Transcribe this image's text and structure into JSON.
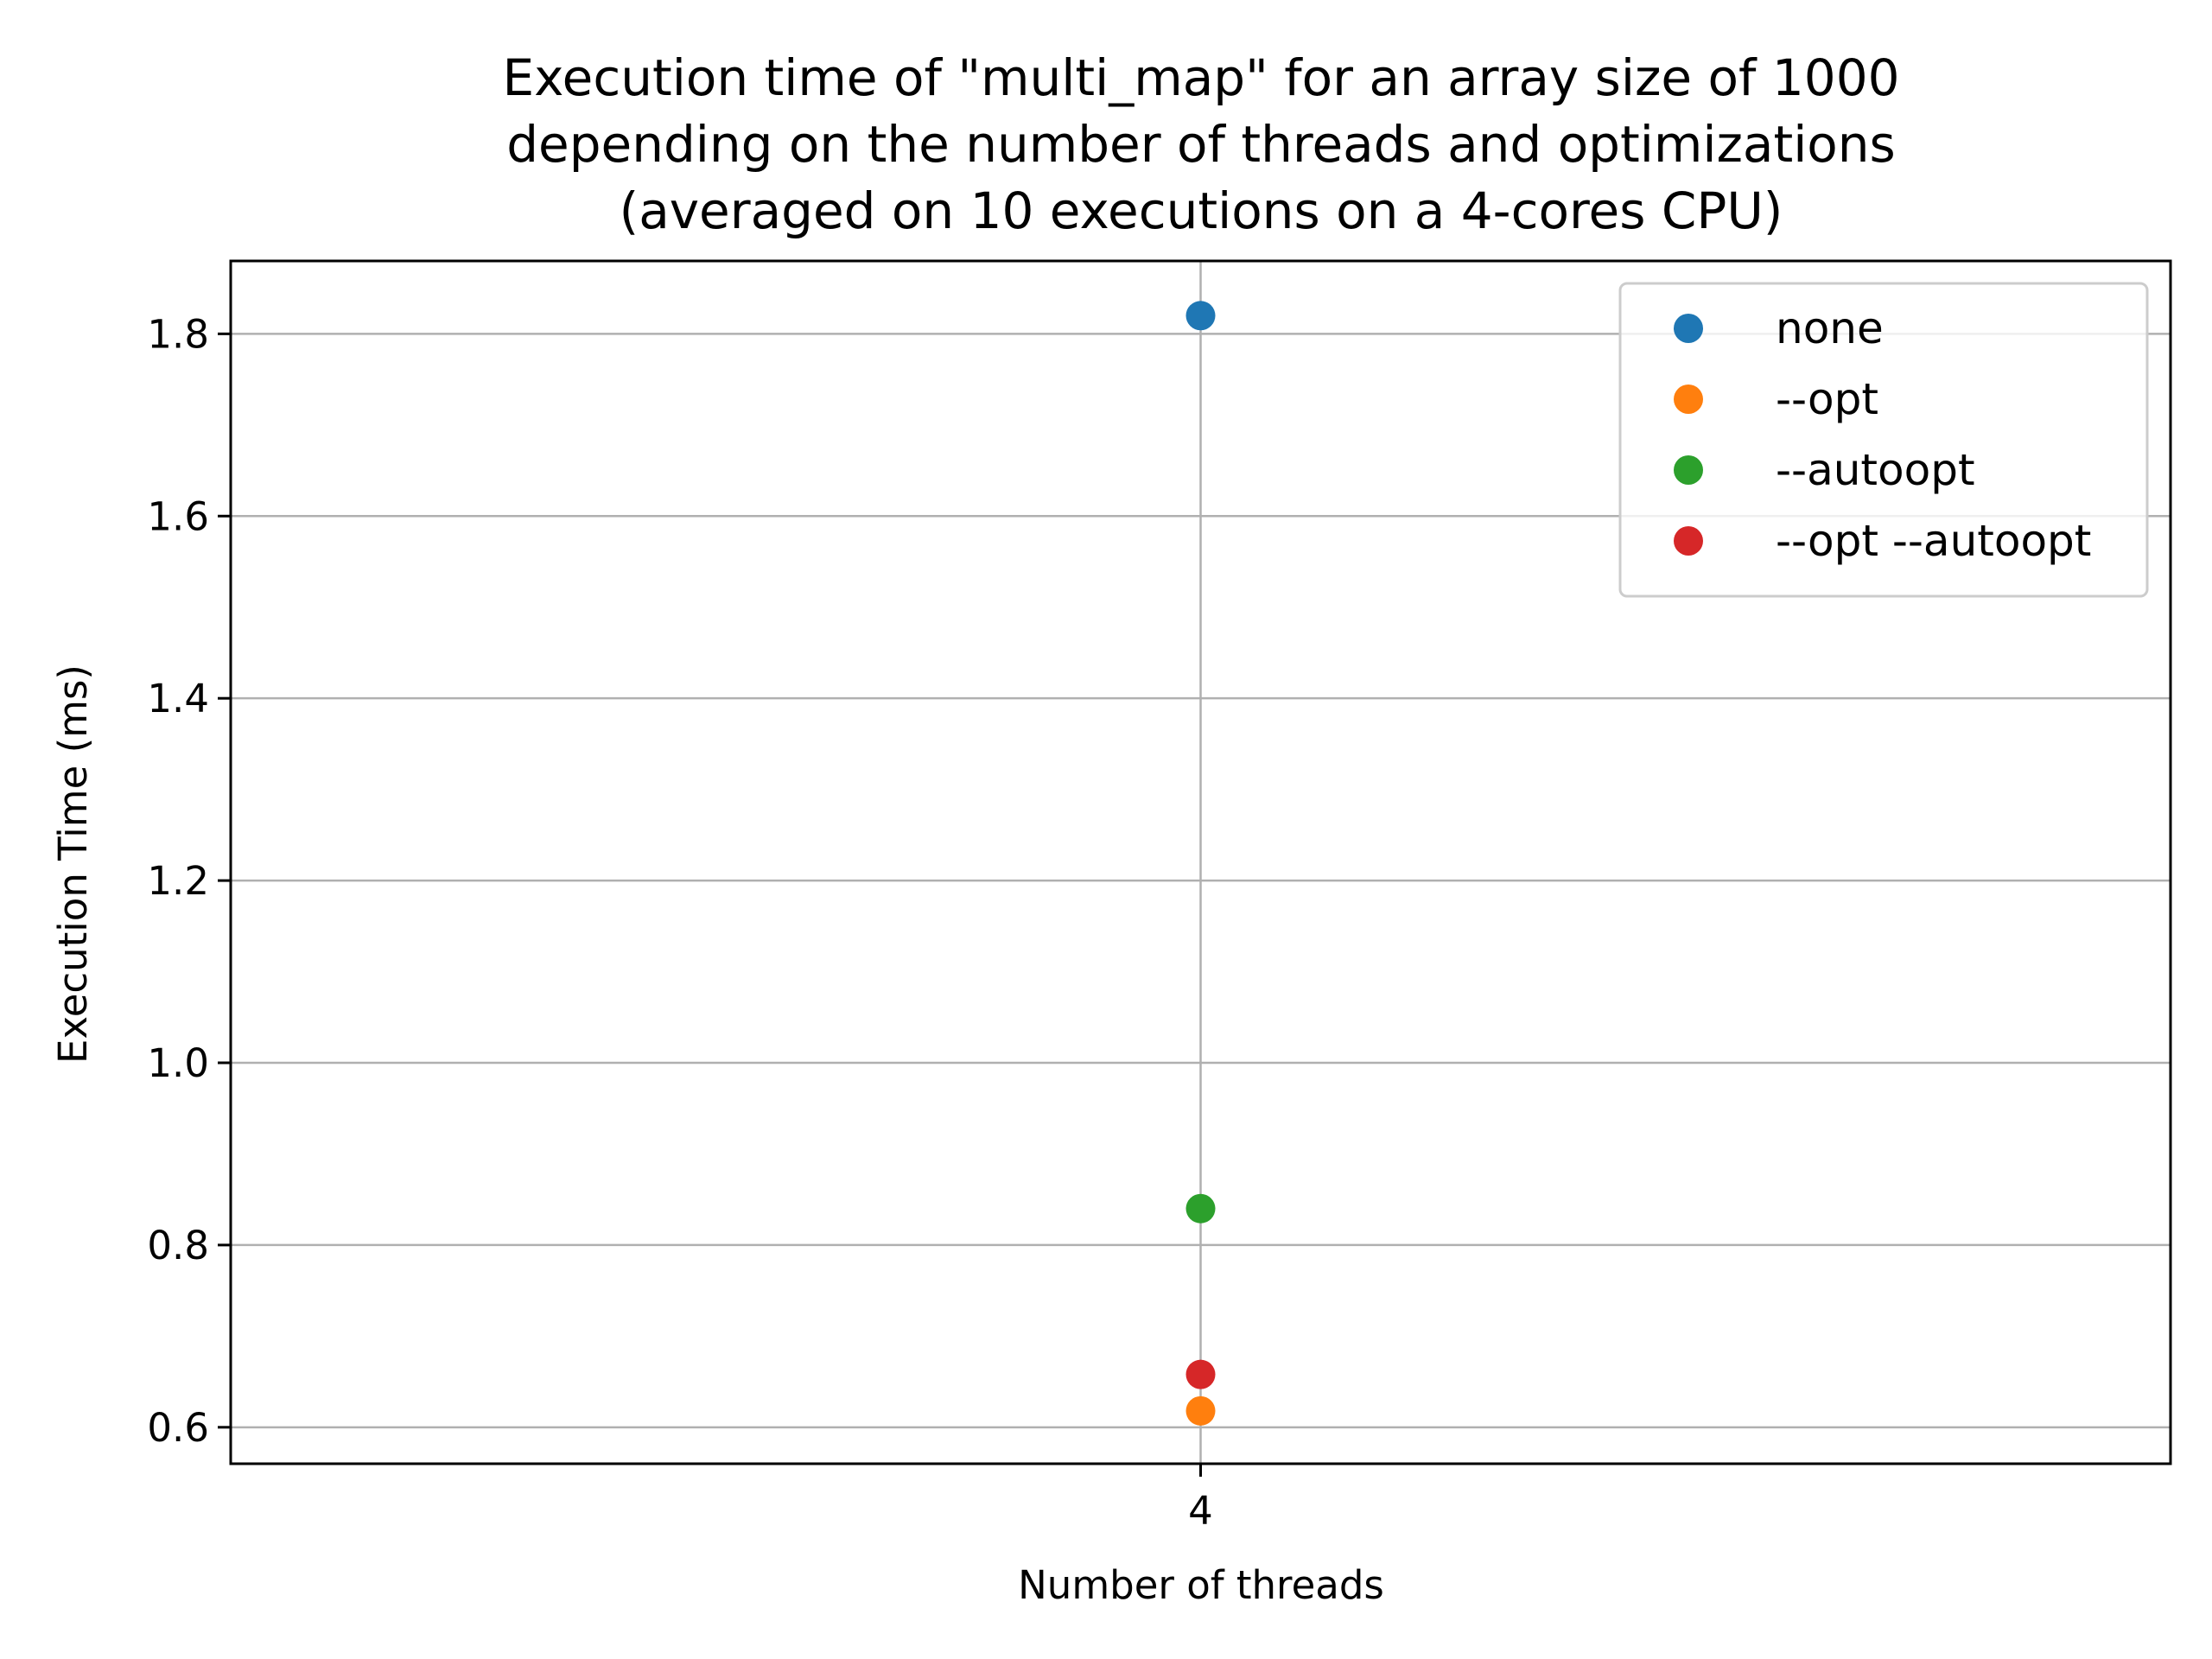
{
  "chart_data": {
    "type": "scatter",
    "title_lines": [
      "Execution time of \"multi_map\" for an array size of 1000",
      "depending on the number of threads and optimizations",
      "(averaged on 10 executions on a 4-cores CPU)"
    ],
    "xlabel": "Number of threads",
    "ylabel": "Execution Time (ms)",
    "x_categories": [
      "4"
    ],
    "ylim": [
      0.56,
      1.88
    ],
    "y_ticks": [
      0.6,
      0.8,
      1.0,
      1.2,
      1.4,
      1.6,
      1.8
    ],
    "y_tick_labels": [
      "0.6",
      "0.8",
      "1.0",
      "1.2",
      "1.4",
      "1.6",
      "1.8"
    ],
    "grid": true,
    "legend_position": "top-right",
    "series": [
      {
        "name": "none",
        "color": "#1f77b4",
        "points": [
          {
            "x": "4",
            "y": 1.82
          }
        ]
      },
      {
        "name": "--opt",
        "color": "#ff7f0e",
        "points": [
          {
            "x": "4",
            "y": 0.618
          }
        ]
      },
      {
        "name": "--autoopt",
        "color": "#2ca02c",
        "points": [
          {
            "x": "4",
            "y": 0.84
          }
        ]
      },
      {
        "name": "--opt --autoopt",
        "color": "#d62728",
        "points": [
          {
            "x": "4",
            "y": 0.658
          }
        ]
      }
    ]
  }
}
